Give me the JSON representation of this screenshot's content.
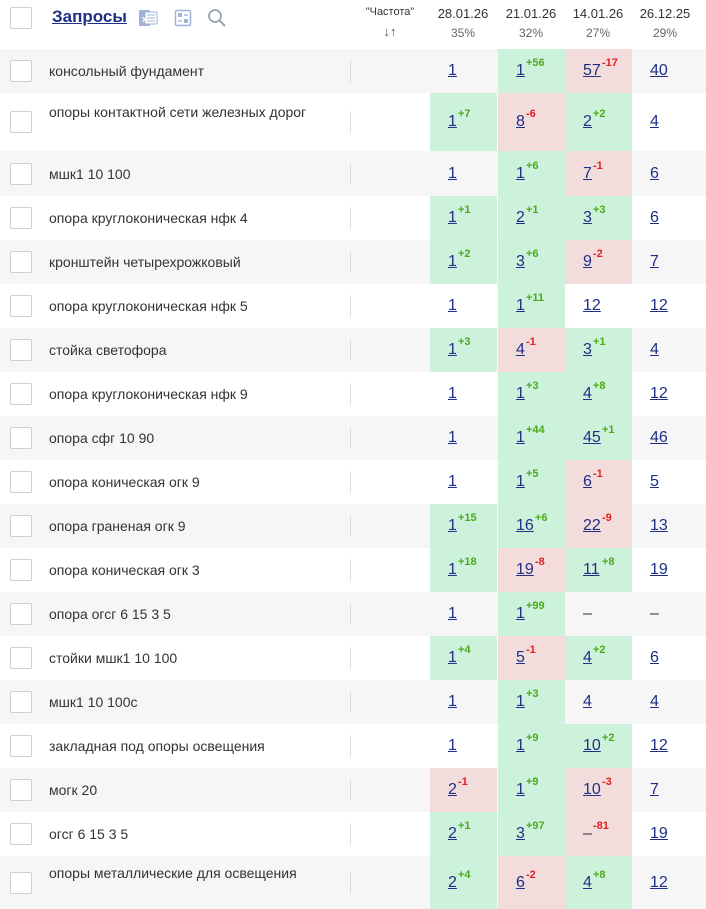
{
  "header": {
    "title": "Запросы",
    "frequency_label": "\"Частота\"",
    "sort_icon": "↓↑",
    "dates": [
      {
        "date": "28.01.26",
        "pct": "35%"
      },
      {
        "date": "21.01.26",
        "pct": "32%"
      },
      {
        "date": "14.01.26",
        "pct": "27%"
      },
      {
        "date": "26.12.25",
        "pct": "29%"
      }
    ],
    "icons": [
      "excel-icon",
      "calculator-icon",
      "search-icon"
    ]
  },
  "colors": {
    "up": "#cdf2dc",
    "down": "#f2dcdc",
    "plus": "#4caa19",
    "minus": "#e02020",
    "link": "#1f2f86"
  },
  "rows": [
    {
      "query": "консольный фундамент",
      "cells": [
        {
          "value": "1",
          "delta": "",
          "status": ""
        },
        {
          "value": "1",
          "delta": "+56",
          "status": "up"
        },
        {
          "value": "57",
          "delta": "-17",
          "status": "down"
        },
        {
          "value": "40",
          "delta": "",
          "status": ""
        }
      ]
    },
    {
      "query": "опоры контактной сети железных дорог",
      "cells": [
        {
          "value": "1",
          "delta": "+7",
          "status": "up"
        },
        {
          "value": "8",
          "delta": "-6",
          "status": "down"
        },
        {
          "value": "2",
          "delta": "+2",
          "status": "up"
        },
        {
          "value": "4",
          "delta": "",
          "status": ""
        }
      ]
    },
    {
      "query": "мшк1 10 100",
      "cells": [
        {
          "value": "1",
          "delta": "",
          "status": ""
        },
        {
          "value": "1",
          "delta": "+6",
          "status": "up"
        },
        {
          "value": "7",
          "delta": "-1",
          "status": "down"
        },
        {
          "value": "6",
          "delta": "",
          "status": ""
        }
      ]
    },
    {
      "query": "опора круглоконическая нфк 4",
      "cells": [
        {
          "value": "1",
          "delta": "+1",
          "status": "up"
        },
        {
          "value": "2",
          "delta": "+1",
          "status": "up"
        },
        {
          "value": "3",
          "delta": "+3",
          "status": "up"
        },
        {
          "value": "6",
          "delta": "",
          "status": ""
        }
      ]
    },
    {
      "query": "кронштейн четырехрожковый",
      "cells": [
        {
          "value": "1",
          "delta": "+2",
          "status": "up"
        },
        {
          "value": "3",
          "delta": "+6",
          "status": "up"
        },
        {
          "value": "9",
          "delta": "-2",
          "status": "down"
        },
        {
          "value": "7",
          "delta": "",
          "status": ""
        }
      ]
    },
    {
      "query": "опора круглоконическая нфк 5",
      "cells": [
        {
          "value": "1",
          "delta": "",
          "status": ""
        },
        {
          "value": "1",
          "delta": "+11",
          "status": "up"
        },
        {
          "value": "12",
          "delta": "",
          "status": ""
        },
        {
          "value": "12",
          "delta": "",
          "status": ""
        }
      ]
    },
    {
      "query": "стойка светофора",
      "cells": [
        {
          "value": "1",
          "delta": "+3",
          "status": "up"
        },
        {
          "value": "4",
          "delta": "-1",
          "status": "down"
        },
        {
          "value": "3",
          "delta": "+1",
          "status": "up"
        },
        {
          "value": "4",
          "delta": "",
          "status": ""
        }
      ]
    },
    {
      "query": "опора круглоконическая нфк 9",
      "cells": [
        {
          "value": "1",
          "delta": "",
          "status": ""
        },
        {
          "value": "1",
          "delta": "+3",
          "status": "up"
        },
        {
          "value": "4",
          "delta": "+8",
          "status": "up"
        },
        {
          "value": "12",
          "delta": "",
          "status": ""
        }
      ]
    },
    {
      "query": "опора сфг 10 90",
      "cells": [
        {
          "value": "1",
          "delta": "",
          "status": ""
        },
        {
          "value": "1",
          "delta": "+44",
          "status": "up"
        },
        {
          "value": "45",
          "delta": "+1",
          "status": "up"
        },
        {
          "value": "46",
          "delta": "",
          "status": ""
        }
      ]
    },
    {
      "query": "опора коническая огк 9",
      "cells": [
        {
          "value": "1",
          "delta": "",
          "status": ""
        },
        {
          "value": "1",
          "delta": "+5",
          "status": "up"
        },
        {
          "value": "6",
          "delta": "-1",
          "status": "down"
        },
        {
          "value": "5",
          "delta": "",
          "status": ""
        }
      ]
    },
    {
      "query": "опора граненая огк 9",
      "cells": [
        {
          "value": "1",
          "delta": "+15",
          "status": "up"
        },
        {
          "value": "16",
          "delta": "+6",
          "status": "up"
        },
        {
          "value": "22",
          "delta": "-9",
          "status": "down"
        },
        {
          "value": "13",
          "delta": "",
          "status": ""
        }
      ]
    },
    {
      "query": "опора коническая огк 3",
      "cells": [
        {
          "value": "1",
          "delta": "+18",
          "status": "up"
        },
        {
          "value": "19",
          "delta": "-8",
          "status": "down"
        },
        {
          "value": "11",
          "delta": "+8",
          "status": "up"
        },
        {
          "value": "19",
          "delta": "",
          "status": ""
        }
      ]
    },
    {
      "query": "опора огсг 6 15 3 5",
      "cells": [
        {
          "value": "1",
          "delta": "",
          "status": ""
        },
        {
          "value": "1",
          "delta": "+99",
          "status": "up"
        },
        {
          "value": "–",
          "delta": "",
          "status": ""
        },
        {
          "value": "–",
          "delta": "",
          "status": ""
        }
      ]
    },
    {
      "query": "стойки мшк1 10 100",
      "cells": [
        {
          "value": "1",
          "delta": "+4",
          "status": "up"
        },
        {
          "value": "5",
          "delta": "-1",
          "status": "down"
        },
        {
          "value": "4",
          "delta": "+2",
          "status": "up"
        },
        {
          "value": "6",
          "delta": "",
          "status": ""
        }
      ]
    },
    {
      "query": "мшк1 10 100с",
      "cells": [
        {
          "value": "1",
          "delta": "",
          "status": ""
        },
        {
          "value": "1",
          "delta": "+3",
          "status": "up"
        },
        {
          "value": "4",
          "delta": "",
          "status": ""
        },
        {
          "value": "4",
          "delta": "",
          "status": ""
        }
      ]
    },
    {
      "query": "закладная под опоры освещения",
      "cells": [
        {
          "value": "1",
          "delta": "",
          "status": ""
        },
        {
          "value": "1",
          "delta": "+9",
          "status": "up"
        },
        {
          "value": "10",
          "delta": "+2",
          "status": "up"
        },
        {
          "value": "12",
          "delta": "",
          "status": ""
        }
      ]
    },
    {
      "query": "могк 20",
      "cells": [
        {
          "value": "2",
          "delta": "-1",
          "status": "down"
        },
        {
          "value": "1",
          "delta": "+9",
          "status": "up"
        },
        {
          "value": "10",
          "delta": "-3",
          "status": "down"
        },
        {
          "value": "7",
          "delta": "",
          "status": ""
        }
      ]
    },
    {
      "query": "огсг 6 15 3 5",
      "cells": [
        {
          "value": "2",
          "delta": "+1",
          "status": "up"
        },
        {
          "value": "3",
          "delta": "+97",
          "status": "up"
        },
        {
          "value": "–",
          "delta": "-81",
          "status": "down"
        },
        {
          "value": "19",
          "delta": "",
          "status": ""
        }
      ]
    },
    {
      "query": "опоры металлические для освещения",
      "cells": [
        {
          "value": "2",
          "delta": "+4",
          "status": "up"
        },
        {
          "value": "6",
          "delta": "-2",
          "status": "down"
        },
        {
          "value": "4",
          "delta": "+8",
          "status": "up"
        },
        {
          "value": "12",
          "delta": "",
          "status": ""
        }
      ]
    }
  ]
}
